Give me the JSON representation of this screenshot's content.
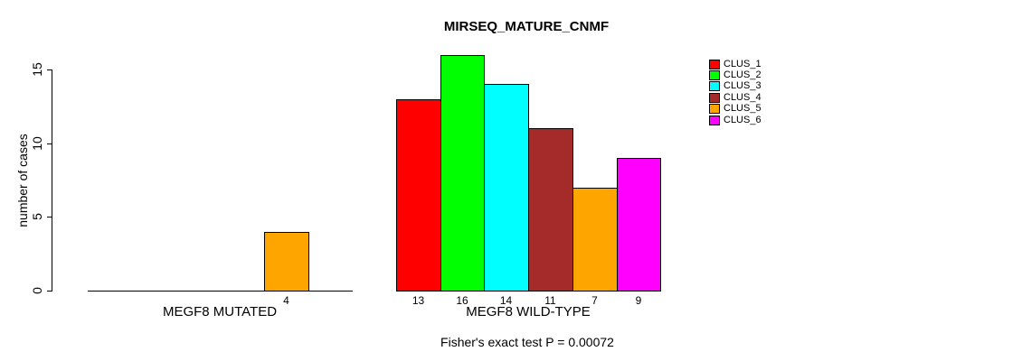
{
  "title": "MIRSEQ_MATURE_CNMF",
  "y_axis": {
    "label": "number of cases",
    "ticks": [
      0,
      5,
      10,
      15
    ]
  },
  "legend": {
    "position": "top-right",
    "items": [
      {
        "label": "CLUS_1",
        "color": "#FF0000"
      },
      {
        "label": "CLUS_2",
        "color": "#00FF00"
      },
      {
        "label": "CLUS_3",
        "color": "#00FFFF"
      },
      {
        "label": "CLUS_4",
        "color": "#A52A2A"
      },
      {
        "label": "CLUS_5",
        "color": "#FFA500"
      },
      {
        "label": "CLUS_6",
        "color": "#FF00FF"
      }
    ]
  },
  "footer": {
    "fisher_text": "Fisher's exact test P = 0.00072"
  },
  "chart_data": {
    "type": "bar",
    "title": "MIRSEQ_MATURE_CNMF",
    "xlabel": "",
    "ylabel": "number of cases",
    "ylim": [
      0,
      16
    ],
    "yticks": [
      0,
      5,
      10,
      15
    ],
    "grid": false,
    "legend_position": "top-right",
    "categories": [
      "MEGF8 MUTATED",
      "MEGF8 WILD-TYPE"
    ],
    "groups": [
      {
        "label": "MEGF8 MUTATED",
        "bars": [
          {
            "cluster": "CLUS_1",
            "value": 0,
            "color": "#FF0000"
          },
          {
            "cluster": "CLUS_2",
            "value": 0,
            "color": "#00FF00"
          },
          {
            "cluster": "CLUS_3",
            "value": 0,
            "color": "#00FFFF"
          },
          {
            "cluster": "CLUS_4",
            "value": 0,
            "color": "#A52A2A"
          },
          {
            "cluster": "CLUS_5",
            "value": 4,
            "color": "#FFA500"
          },
          {
            "cluster": "CLUS_6",
            "value": 0,
            "color": "#FF00FF"
          }
        ]
      },
      {
        "label": "MEGF8 WILD-TYPE",
        "bars": [
          {
            "cluster": "CLUS_1",
            "value": 13,
            "color": "#FF0000"
          },
          {
            "cluster": "CLUS_2",
            "value": 16,
            "color": "#00FF00"
          },
          {
            "cluster": "CLUS_3",
            "value": 14,
            "color": "#00FFFF"
          },
          {
            "cluster": "CLUS_4",
            "value": 11,
            "color": "#A52A2A"
          },
          {
            "cluster": "CLUS_5",
            "value": 7,
            "color": "#FFA500"
          },
          {
            "cluster": "CLUS_6",
            "value": 9,
            "color": "#FF00FF"
          }
        ]
      }
    ],
    "bar_value_labels": "shown below each nonzero bar",
    "annotation": "Fisher's exact test P = 0.00072"
  }
}
